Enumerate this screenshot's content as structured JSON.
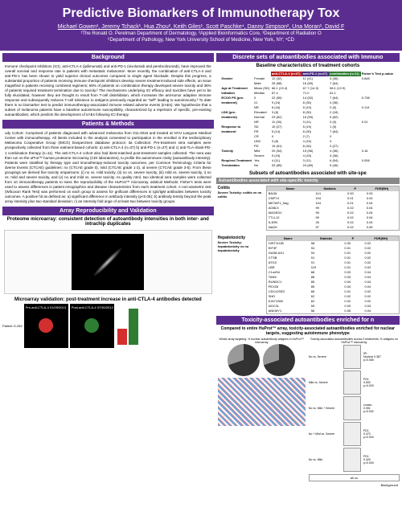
{
  "header": {
    "title": "Predictive Biomarkers of Immunotherapy Tox",
    "authors_html": "Michael Gowen¹, Jeremy Tchack¹, Hua Zhou², Keith Giles¹, Scott Paschke⁴, Danny Simpson², Una Moran¹, David F",
    "affil1": "¹The Ronald O. Perelman Department of Dermatology, ²Applied Bioinformatics Core, ³Department of Radiation O",
    "affil2": "⁶Department of Pathology, New York University School of Medicine, New York, NY; ⁴CD"
  },
  "sections": {
    "background_title": "Background",
    "background_body": "Immune checkpoint inhibitors (ICI), anti-CTLA-4 (ipilimumab) and anti-PD-1 (nivolumab and pembrolizumab), have improved the overall survival and response rate in patients with metastatic melanoma¹. More recently, the combination of anti-CTLA-4 and anti-PD-1 has been shown to yield superior clinical outcomes compared to single agent blockade. Despite this progress, a substantial proportion of patients receiving immune checkpoint inhibitors develop severe treatment-induced side effects, an issue magnified in patients receiving combined regimens; 69% of patients on combination therapy developed severe toxicity and 36% of patients required treatment termination due to toxicity.² The mechanisms underlying ICI efficacy and toxicities have yet to be fully elucidated, however they are thought to result from T-cell disinhibition, which increases the anti-tumor adaptive immune response and subsequently reduces T-cell tolerance to antigens previously regarded as \"self\" leading to autoimmunity.³ To date there is no biomarker test to predict immunotherapy-associated immune related adverse events (irAEs). We hypothesize that a subset of melanoma patients have a baseline autoimmune susceptibility, characterized by a repertoire of specific, pre-existing autoantibodies, which predicts the development of irAEs following ICI therapy.",
    "methods_title": "Patients & Methods",
    "methods_body": "udy Cohort: Comprised of patients diagnosed with advanced melanoma from 011-2016 and treated at NYU Langone Medical Center with immunotherapy. All itients included in the analysis consented to participation in the enrolled in the terdisciplinary Melanoma Cooperative Group (IMCG) biospecimen database protocol. ita Collection: Pre-treatment sera samples were prospectively collected from three eatment-based cohorts: a) anti-CTLA-4 (n=37) b) anti-PD-1 (n=27) and c) anti-TLA-4/anti-PD-1 combination therapy (n=11). The anti-CTLA-4 cohort also had itient-matched post-treatment samples collected. The sera was then run on the uProt™ human proteome microarray (CDI laboratories), to profile the autoimmune ctivity (autoantibody intensity). Patients were stratified by therapy type and imunotherapy-induced toxicity outcomes, per Common Terminology Criteria for dverse Events (CTCAE) guidelines: no (CTCAE grade 0), mild (CTCAE grade 1-2), id severe (CTCAE grade 3-5). From these groupings we derived five toxicity omparisons: (i) no vs. mild toxicity, (ii) no vs. severe toxicity, (iii) mild vs. severe toxicity, i) no vs. mild and severe toxicity, and (v) no and mild vs. severe toxicity. As quality ntrol, two identical sera samples were collected from 10 immunotherapy patients to isess the reproducibility of the HuProt™ microarray. atistical Methods: Fisher's tests were used to assess differences in patient emographics and disease characteristics from each treatment cohort. A non-arametric test (Wilcoxon Rank Test) was performed on each group to assess for gnificant differences in IgG/IgM antibodies between toxicity outcomes. A positive hit as defined as: a) significant difference in antibody intensity (p<0.05); b) antibody tensity beyond the peak array intensity plus two standard deviation; c) an intensity fold ange of at least two between toxicity groups.",
    "array_title": "Array Reproducibility and Validation",
    "proteome_subtitle": "Proteome microarray: consistent detection of autoantibody intensities in both inter- and intrachip duplicates",
    "microarray_subtitle": "Microarray validation: post-treatment increase in anti-CTLA-4 antibodies detected",
    "discrete_title": "Discrete sets of autoantibodies associated with Immuno",
    "baseline_subtitle": "Baseline characteristics of treatment cohorts",
    "subsets_subtitle": "Subsets of autoantibodies associated with site-spe",
    "toxicity_title": "Toxicity-associated autoantibodies enriched for n",
    "huprot_subtitle": "Compared to entire HuProt™ array, toxicity-associated autoantibodies enriched for nuclear targets, suggesting autoimmune phenotype"
  },
  "cohort_table": {
    "headers": [
      "",
      "",
      "anti-CTLA-4\n(n=37)",
      "anti-PD-1\n(n=27)",
      "combination\n(n=11)",
      "Fisher's\nTest\np-value"
    ],
    "rows": [
      [
        "Gender",
        "Female",
        "12 (32)",
        "11 (41)",
        "4 (36)",
        "0.848"
      ],
      [
        "",
        "Male",
        "25 (68)",
        "16 (59)",
        "7 (64)",
        ""
      ],
      [
        "Age at Treatment",
        "Mean (SD)",
        "66.1 (13.4)",
        "67.7 (14.3)",
        "58.1 (12.9)",
        ""
      ],
      [
        "Initiation",
        "Median",
        "67.4",
        "71.0",
        "61.1",
        ""
      ],
      [
        "ECOG PS (pre-",
        "0",
        "22 (59)",
        "14 (52)",
        "7 (64)",
        "0.738"
      ],
      [
        "treatment)",
        "≥1",
        "9 (24)",
        "8 (30)",
        "4 (36)",
        ""
      ],
      [
        "",
        "NR",
        "6 (16)",
        "5 (19)",
        "0 (0)",
        "0.114"
      ],
      [
        "LDH (pre-",
        "Elevated",
        "3 (8)",
        "8 (30)",
        "2 (18)",
        ""
      ],
      [
        "treatment)",
        "Normal",
        "23 (62)",
        "16 (59)",
        "9 (82)",
        ""
      ],
      [
        "",
        "NR",
        "11 (30)",
        "3 (11)",
        "0 (0)",
        "0.01"
      ],
      [
        "Response to",
        "SD",
        "10 (27)",
        "5 (19)",
        "1 (9)",
        ""
      ],
      [
        "treatment",
        "PR",
        "5 (14)",
        "8 (30)",
        "7 (64)",
        ""
      ],
      [
        "",
        "CR",
        "0",
        "2 (7)",
        "0",
        ""
      ],
      [
        "",
        "UNC",
        "3 (8)",
        "4 (15)",
        "0",
        ""
      ],
      [
        "",
        "PD",
        "19 (51)",
        "8 (30)",
        "3 (27)",
        ""
      ],
      [
        "Toxicity",
        "Mild",
        "20 (54)",
        "15 (56)",
        "4 (36)",
        "0.16"
      ],
      [
        "",
        "Severe",
        "9 (24)",
        "4 (15)",
        "4 (36)",
        ""
      ],
      [
        "Required Treatment",
        "Yes",
        "4 (11)",
        "3 (11)",
        "6 (54)",
        "0.006"
      ],
      [
        "Termination",
        "No",
        "33 (89)",
        "24 (89)",
        "5 (46)",
        ""
      ]
    ]
  },
  "ab_panels": {
    "colitis": {
      "title": "Autoantibodies associated with site-specific toxicity",
      "header": "Colitis",
      "sub": "Severe Toxicity: colitis vs no colitis",
      "cols": [
        "Name",
        "Statistic",
        "P",
        "FDR(BH)"
      ],
      "rows": [
        [
          "BAG6",
          "114",
          "0.00",
          "0.03"
        ],
        [
          "CNPY4",
          "104",
          "0.01",
          "0.04"
        ],
        [
          "METAP1_frag",
          "104",
          "0.01",
          "0.04"
        ],
        [
          "AGBL5",
          "99",
          "0.02",
          "0.04"
        ],
        [
          "MAGED1",
          "99",
          "0.02",
          "0.04"
        ],
        [
          "TTLL12",
          "99",
          "0.02",
          "0.04"
        ],
        [
          "IL1RN",
          "26",
          "0.02",
          "0.04"
        ],
        [
          "NAGK",
          "97",
          "0.02",
          "0.05"
        ]
      ]
    },
    "hepatotoxicity": {
      "header": "Hepatotoxicity",
      "sub": "Severe Toxicity: hepatotoxicity vs no hepatotoxicity",
      "cols": [
        "Name",
        "Statistic",
        "P",
        "FDR(BH)"
      ],
      "rows": [
        [
          "HIST1H1B",
          "98",
          "0.00",
          "0.02"
        ],
        [
          "EIF3F",
          "94",
          "0.01",
          "0.02"
        ],
        [
          "GAS8-AS1",
          "94",
          "0.01",
          "0.02"
        ],
        [
          "CTSB",
          "91",
          "0.01",
          "0.02"
        ],
        [
          "ATG3",
          "91",
          "0.01",
          "0.02"
        ],
        [
          "LBR",
          "119",
          "0.01",
          "0.02"
        ],
        [
          "C1orf94",
          "88",
          "0.03",
          "0.04"
        ],
        [
          "TANK",
          "88",
          "0.03",
          "0.04"
        ],
        [
          "RUNDC1",
          "85",
          "0.04",
          "0.04"
        ],
        [
          "PEX26",
          "85",
          "0.04",
          "0.04"
        ],
        [
          "CDC42SE2",
          "66",
          "0.01",
          "0.02"
        ],
        [
          "SHD",
          "62",
          "0.02",
          "0.02"
        ],
        [
          "KJ671268",
          "62",
          "0.02",
          "0.02"
        ],
        [
          "NOC3L",
          "59",
          "0.03",
          "0.03"
        ],
        [
          "ANKMY1",
          "56",
          "0.05",
          "0.04"
        ]
      ]
    }
  },
  "micro_labels": {
    "pre": "Pre-anti-CTLA-4\n01/09/2013",
    "post": "Post-anti-CTLA-4\n07/30/2013",
    "patient": "Patient\nG-282"
  },
  "tox_panel": {
    "left_title": "Whole-array targeting: % nuclear autoantibody\nantigens in HuProt™ microarray",
    "right_title": "Toxicity-associated autoantibodies across 3 treatments: %\nantigens on HuProt™ microarray",
    "charts": [
      {
        "label": "No vs. Severe",
        "cohort": "IPI",
        "n": "Nuclear 0.387",
        "p": "0.065",
        "fdr": "0.064"
      },
      {
        "label": "Mild vs. Severe",
        "cohort": "PD1",
        "n": "0.500",
        "p": "0.003",
        "fdr": "0.004"
      },
      {
        "label": "No vs. Mild + Severe",
        "cohort": "combo",
        "n": "0.351",
        "p": "0.002",
        "fdr": "0.003"
      },
      {
        "label": "No + Mild vs. Severe",
        "cohort": "PD1",
        "n": "0.470",
        "p": "0.004",
        "fdr": "0.008"
      },
      {
        "label": "No vs. Mild",
        "cohort": "PD1",
        "n": "0.429",
        "p": "0.004",
        "fdr": "0.033"
      }
    ],
    "bg_label": "Background",
    "all_co": "all co"
  }
}
